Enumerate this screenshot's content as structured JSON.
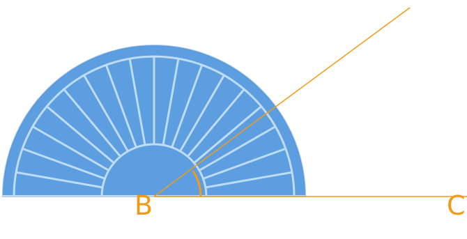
{
  "labels": {
    "b": "B",
    "c": "C"
  },
  "colors": {
    "protractor_fill": "#5d9ee0",
    "protractor_lines": "#bfdcf5",
    "angle_rays": "#f39a14"
  },
  "icons": {
    "protractor": "protractor-icon"
  }
}
